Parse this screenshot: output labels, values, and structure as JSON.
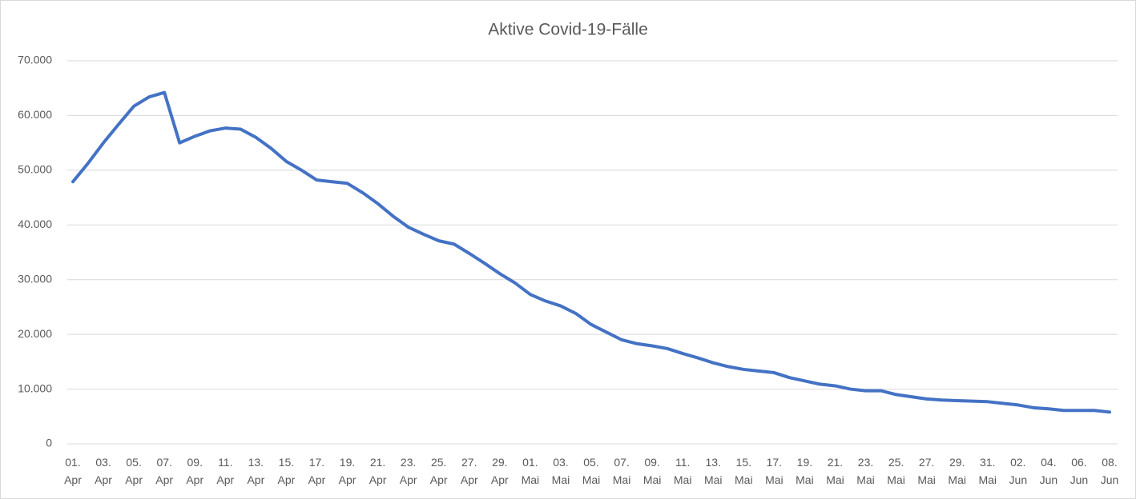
{
  "chart_data": {
    "type": "line",
    "title": "Aktive Covid-19-Fälle",
    "categories": [
      "01. Apr",
      null,
      "03. Apr",
      null,
      "05. Apr",
      null,
      "07. Apr",
      null,
      "09. Apr",
      null,
      "11. Apr",
      null,
      "13. Apr",
      null,
      "15. Apr",
      null,
      "17. Apr",
      null,
      "19. Apr",
      null,
      "21. Apr",
      null,
      "23. Apr",
      null,
      "25. Apr",
      null,
      "27. Apr",
      null,
      "29. Apr",
      null,
      "01. Mai",
      null,
      "03. Mai",
      null,
      "05. Mai",
      null,
      "07. Mai",
      null,
      "09. Mai",
      null,
      "11. Mai",
      null,
      "13. Mai",
      null,
      "15. Mai",
      null,
      "17. Mai",
      null,
      "19. Mai",
      null,
      "21. Mai",
      null,
      "23. Mai",
      null,
      "25. Mai",
      null,
      "27. Mai",
      null,
      "29. Mai",
      null,
      "31. Mai",
      null,
      "02. Jun",
      null,
      "04. Jun",
      null,
      "06. Jun",
      null,
      "08. Jun"
    ],
    "values": [
      47900,
      51300,
      55000,
      58400,
      61700,
      63400,
      64200,
      55000,
      56200,
      57200,
      57700,
      57500,
      56000,
      54000,
      51600,
      50000,
      48200,
      47900,
      47600,
      45900,
      43900,
      41600,
      39600,
      38300,
      37100,
      36500,
      34800,
      33000,
      31100,
      29400,
      27300,
      26100,
      25200,
      23800,
      21800,
      20400,
      19000,
      18300,
      17900,
      17400,
      16500,
      15700,
      14800,
      14100,
      13600,
      13300,
      13000,
      12100,
      11500,
      10900,
      10600,
      10000,
      9700,
      9700,
      9000,
      8600,
      8200,
      8000,
      7900,
      7800,
      7700,
      7400,
      7100,
      6600,
      6400,
      6100,
      6100,
      6100,
      5800
    ],
    "color": "#4472c4",
    "ylim": [
      0,
      70000
    ],
    "yticks": [
      0,
      {
        "value": 10000,
        "label": "10.000"
      },
      {
        "value": 20000,
        "label": "20.000"
      },
      {
        "value": 30000,
        "label": "30.000"
      },
      {
        "value": 40000,
        "label": "40.000"
      },
      {
        "value": 50000,
        "label": "50.000"
      },
      {
        "value": 60000,
        "label": "60.000"
      },
      {
        "value": 70000,
        "label": "70.000"
      }
    ],
    "grid": true
  }
}
